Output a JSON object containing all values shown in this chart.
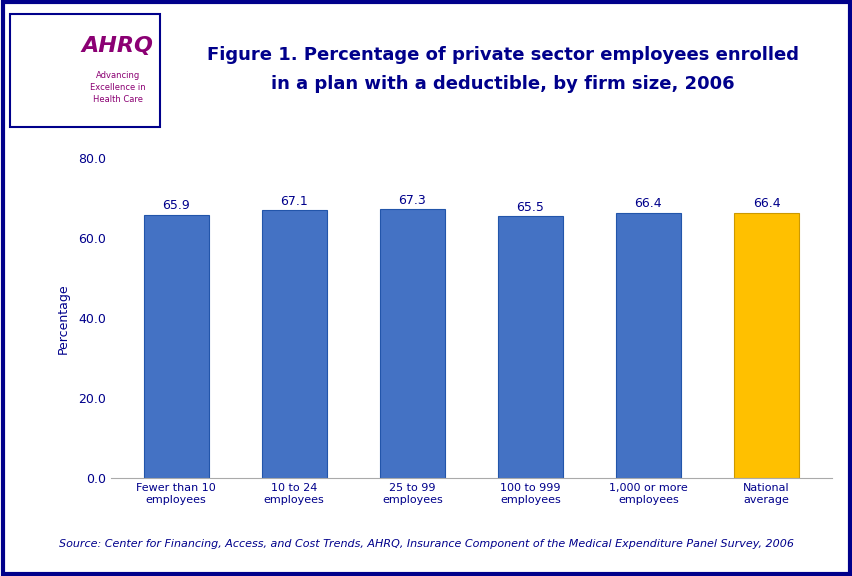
{
  "categories": [
    "Fewer than 10\nemployees",
    "10 to 24\nemployees",
    "25 to 99\nemployees",
    "100 to 999\nemployees",
    "1,000 or more\nemployees",
    "National\naverage"
  ],
  "values": [
    65.9,
    67.1,
    67.3,
    65.5,
    66.4,
    66.4
  ],
  "bar_colors": [
    "#4472C4",
    "#4472C4",
    "#4472C4",
    "#4472C4",
    "#4472C4",
    "#FFC000"
  ],
  "bar_edge_colors": [
    "#2255AA",
    "#2255AA",
    "#2255AA",
    "#2255AA",
    "#2255AA",
    "#CC9900"
  ],
  "title_line1": "Figure 1. Percentage of private sector employees enrolled",
  "title_line2": "in a plan with a deductible, by firm size, 2006",
  "ylabel": "Percentage",
  "ylim": [
    0,
    80
  ],
  "yticks": [
    0.0,
    20.0,
    40.0,
    60.0,
    80.0
  ],
  "ytick_labels": [
    "0.0",
    "20.0",
    "40.0",
    "60.0",
    "80.0"
  ],
  "source_text": "Source: Center for Financing, Access, and Cost Trends, AHRQ, Insurance Component of the Medical Expenditure Panel Survey, 2006",
  "title_color": "#00008B",
  "label_color": "#00008B",
  "tick_label_color": "#00008B",
  "ylabel_color": "#00008B",
  "source_color": "#00008B",
  "outer_background": "#FFFFFF",
  "inner_background": "#FFFFFF",
  "header_bg": "#FFFFFF",
  "border_color": "#00008B",
  "separator_color": "#00008B",
  "logo_bg": "#1E90C8",
  "ahrq_text_color": "#8B0073",
  "ahrq_label": "AHRQ",
  "ahrq_sub": "Advancing\nExcellence in\nHealth Care",
  "value_label_fontsize": 9,
  "axis_label_fontsize": 9,
  "title_fontsize": 13,
  "source_fontsize": 8,
  "xtick_fontsize": 8
}
